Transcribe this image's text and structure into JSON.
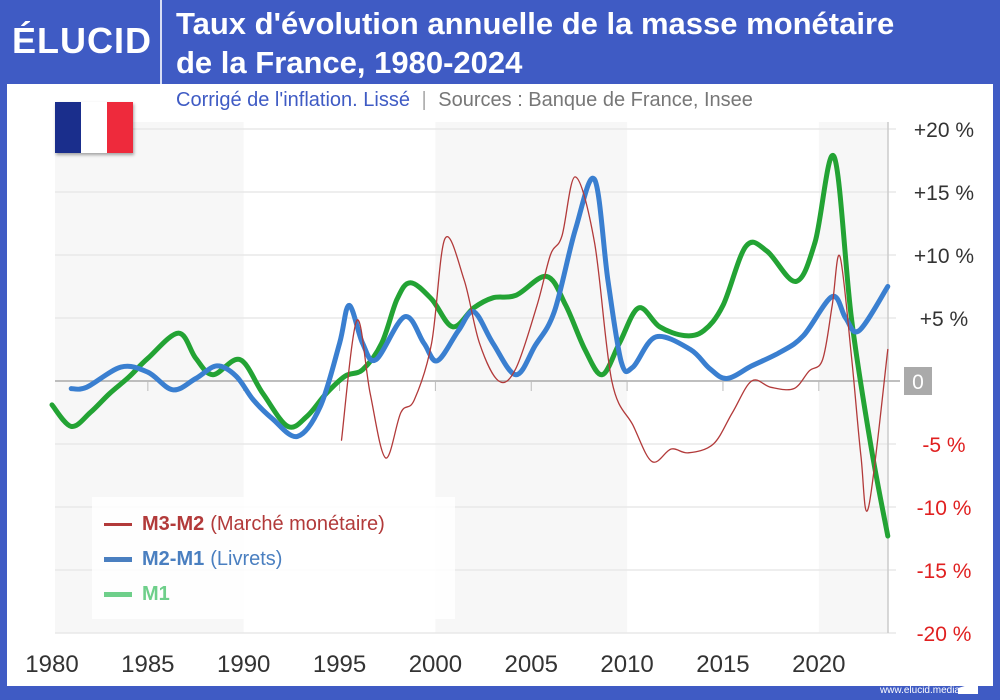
{
  "header": {
    "logo": "ÉLUCID",
    "title_line1": "Taux d'évolution annuelle de la masse monétaire",
    "title_line2": "de la France, 1980-2024"
  },
  "subtitle": {
    "note": "Corrigé de l'inflation. Lissé",
    "separator": "|",
    "sources": "Sources : Banque de France, Insee"
  },
  "footer": {
    "url": "www.elucid.media"
  },
  "colors": {
    "brand": "#3f5bc4",
    "m3m2": "#b23a3a",
    "m2m1": "#3a7fd0",
    "m1": "#23a334",
    "negative_label": "#e02020"
  },
  "chart_data": {
    "type": "line",
    "title": "Taux d'évolution annuelle de la masse monétaire de la France, 1980-2024",
    "xlim": [
      1980,
      2023.6
    ],
    "ylim": [
      -20,
      20
    ],
    "x_ticks": [
      "1980",
      "1985",
      "1990",
      "1995",
      "2000",
      "2005",
      "2010",
      "2015",
      "2020"
    ],
    "y_ticks": [
      {
        "v": 20,
        "label": "+20 %"
      },
      {
        "v": 15,
        "label": "+15 %"
      },
      {
        "v": 10,
        "label": "+10 %"
      },
      {
        "v": 5,
        "label": "+5 %"
      },
      {
        "v": 0,
        "label": "0"
      },
      {
        "v": -5,
        "label": "-5 %"
      },
      {
        "v": -10,
        "label": "-10 %"
      },
      {
        "v": -15,
        "label": "-15 %"
      },
      {
        "v": -20,
        "label": "-20 %"
      }
    ],
    "grid": true,
    "legend_position": "bottom-left",
    "series": [
      {
        "key": "m3m2",
        "name": "M3-M2",
        "detail": "(Marché monétaire)",
        "points": [
          [
            1995.1,
            -4.7
          ],
          [
            1995.9,
            4.8
          ],
          [
            1996.6,
            -1
          ],
          [
            1997.4,
            -6.1
          ],
          [
            1998.2,
            -2.5
          ],
          [
            1998.9,
            -1.5
          ],
          [
            1999.8,
            3
          ],
          [
            2000.5,
            11.3
          ],
          [
            2001.5,
            8
          ],
          [
            2002.3,
            3
          ],
          [
            2003.3,
            0
          ],
          [
            2004.2,
            1
          ],
          [
            2005.3,
            6
          ],
          [
            2006,
            10
          ],
          [
            2006.6,
            11.5
          ],
          [
            2007.3,
            16.2
          ],
          [
            2008.3,
            11
          ],
          [
            2009.2,
            0
          ],
          [
            2010.3,
            -3.5
          ],
          [
            2011.3,
            -6.4
          ],
          [
            2012.3,
            -5.4
          ],
          [
            2013.2,
            -5.7
          ],
          [
            2014.5,
            -5
          ],
          [
            2015.5,
            -2.5
          ],
          [
            2016.5,
            0
          ],
          [
            2017.5,
            -0.5
          ],
          [
            2018.7,
            -0.6
          ],
          [
            2019.5,
            0.8
          ],
          [
            2020.2,
            1.7
          ],
          [
            2020.7,
            6
          ],
          [
            2021.1,
            9.9
          ],
          [
            2021.7,
            2
          ],
          [
            2022.2,
            -6
          ],
          [
            2022.6,
            -10
          ],
          [
            2023.6,
            2.5
          ]
        ]
      },
      {
        "key": "m2m1",
        "name": "M2-M1",
        "detail": "(Livrets)",
        "points": [
          [
            1981,
            -0.6
          ],
          [
            1981.8,
            -0.5
          ],
          [
            1983.6,
            1.1
          ],
          [
            1985,
            0.7
          ],
          [
            1986.3,
            -0.7
          ],
          [
            1987.5,
            0.2
          ],
          [
            1988.6,
            1.2
          ],
          [
            1989.6,
            0.4
          ],
          [
            1990.5,
            -1.5
          ],
          [
            1991.5,
            -3
          ],
          [
            1992.8,
            -4.4
          ],
          [
            1994,
            -2
          ],
          [
            1995,
            3
          ],
          [
            1995.5,
            6
          ],
          [
            1996.2,
            3
          ],
          [
            1996.9,
            1.7
          ],
          [
            1998.4,
            5.1
          ],
          [
            1999.4,
            3
          ],
          [
            2000.1,
            1.6
          ],
          [
            2001.2,
            4
          ],
          [
            2002,
            5.5
          ],
          [
            2003,
            3
          ],
          [
            2004.2,
            0.5
          ],
          [
            2005.2,
            2.8
          ],
          [
            2006.2,
            5.5
          ],
          [
            2007.3,
            12
          ],
          [
            2008.3,
            16
          ],
          [
            2009,
            8
          ],
          [
            2009.7,
            1.5
          ],
          [
            2010.3,
            1.1
          ],
          [
            2011.5,
            3.5
          ],
          [
            2013.3,
            2.5
          ],
          [
            2014.3,
            1
          ],
          [
            2015.2,
            0.2
          ],
          [
            2016.5,
            1.2
          ],
          [
            2018,
            2.3
          ],
          [
            2019.2,
            3.6
          ],
          [
            2020.7,
            6.7
          ],
          [
            2021.4,
            5
          ],
          [
            2022.1,
            4
          ],
          [
            2023.6,
            7.5
          ]
        ]
      },
      {
        "key": "m1",
        "name": "M1",
        "detail": "",
        "points": [
          [
            1980,
            -1.9
          ],
          [
            1981,
            -3.6
          ],
          [
            1982,
            -2.5
          ],
          [
            1983,
            -1
          ],
          [
            1984,
            0.3
          ],
          [
            1985,
            1.8
          ],
          [
            1986.6,
            3.8
          ],
          [
            1987.5,
            1.8
          ],
          [
            1988.4,
            0.5
          ],
          [
            1989.8,
            1.7
          ],
          [
            1991,
            -1
          ],
          [
            1992.3,
            -3.6
          ],
          [
            1993.3,
            -2.8
          ],
          [
            1994.3,
            -1
          ],
          [
            1995.3,
            0.4
          ],
          [
            1996.2,
            0.9
          ],
          [
            1997.2,
            3
          ],
          [
            1998,
            6.5
          ],
          [
            1998.7,
            7.8
          ],
          [
            1999.8,
            6.5
          ],
          [
            2000.9,
            4.3
          ],
          [
            2002,
            5.8
          ],
          [
            2003,
            6.6
          ],
          [
            2004.2,
            6.8
          ],
          [
            2005.8,
            8.3
          ],
          [
            2006.8,
            6
          ],
          [
            2007.8,
            2.5
          ],
          [
            2008.7,
            0.5
          ],
          [
            2009.6,
            3
          ],
          [
            2010.6,
            5.8
          ],
          [
            2011.7,
            4.3
          ],
          [
            2013,
            3.6
          ],
          [
            2014,
            4
          ],
          [
            2015,
            6
          ],
          [
            2016.2,
            10.7
          ],
          [
            2017.3,
            10.3
          ],
          [
            2018.8,
            7.9
          ],
          [
            2019.8,
            11
          ],
          [
            2020.8,
            17.8
          ],
          [
            2021.7,
            5
          ],
          [
            2022.7,
            -5
          ],
          [
            2023.6,
            -12.3
          ]
        ]
      }
    ]
  }
}
